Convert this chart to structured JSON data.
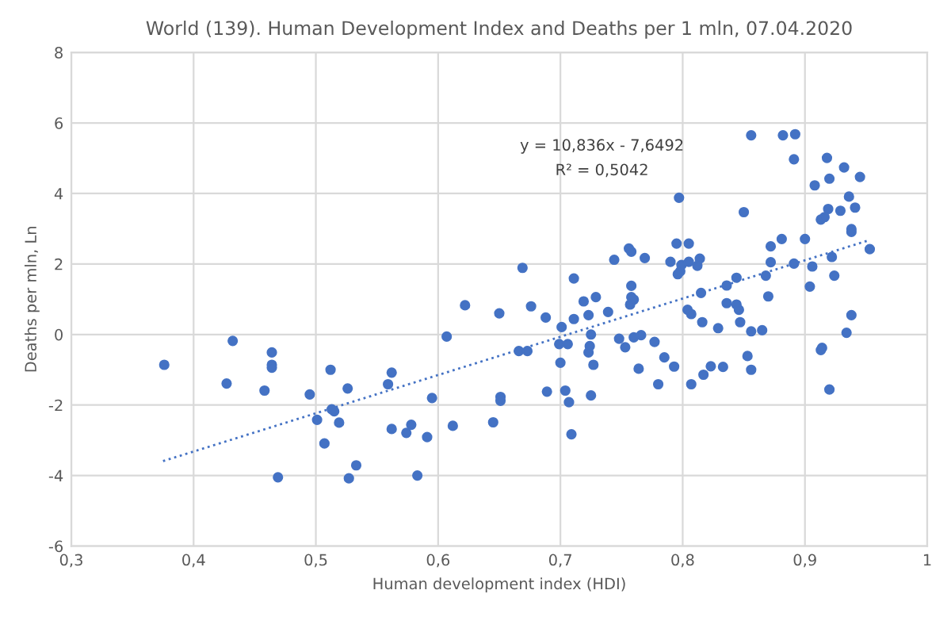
{
  "chart_data": {
    "type": "scatter",
    "title": "World (139). Human Development Index and Deaths per 1 mln, 07.04.2020",
    "xlabel": "Human development index (HDI)",
    "ylabel": "Deaths per mln, Ln",
    "annotations": [
      "y = 10,836x - 7,6492",
      "R² = 0,5042"
    ],
    "xlim": [
      0.3,
      1.0
    ],
    "xticks": [
      {
        "value": 0.3,
        "label": "0,3"
      },
      {
        "value": 0.4,
        "label": "0,4"
      },
      {
        "value": 0.5,
        "label": "0,5"
      },
      {
        "value": 0.6,
        "label": "0,6"
      },
      {
        "value": 0.7,
        "label": "0,7"
      },
      {
        "value": 0.8,
        "label": "0,8"
      },
      {
        "value": 0.9,
        "label": "0,9"
      },
      {
        "value": 1.0,
        "label": "1"
      }
    ],
    "ylim": [
      -6,
      8
    ],
    "yticks": [
      -6,
      -4,
      -2,
      0,
      2,
      4,
      6,
      8
    ],
    "grid": true,
    "marker": "circle",
    "series": [
      {
        "color": "#4472c4",
        "x": [
          0.376,
          0.432,
          0.427,
          0.464,
          0.464,
          0.464,
          0.458,
          0.469,
          0.495,
          0.512,
          0.526,
          0.513,
          0.515,
          0.501,
          0.519,
          0.507,
          0.533,
          0.527,
          0.562,
          0.559,
          0.562,
          0.574,
          0.578,
          0.591,
          0.583,
          0.595,
          0.607,
          0.612,
          0.622,
          0.645,
          0.65,
          0.651,
          0.651,
          0.666,
          0.673,
          0.669,
          0.676,
          0.688,
          0.689,
          0.699,
          0.7,
          0.701,
          0.704,
          0.706,
          0.707,
          0.709,
          0.711,
          0.711,
          0.719,
          0.723,
          0.725,
          0.724,
          0.723,
          0.727,
          0.725,
          0.729,
          0.739,
          0.744,
          0.748,
          0.753,
          0.758,
          0.758,
          0.76,
          0.757,
          0.76,
          0.766,
          0.764,
          0.769,
          0.777,
          0.78,
          0.785,
          0.79,
          0.793,
          0.796,
          0.798,
          0.799,
          0.805,
          0.812,
          0.814,
          0.815,
          0.804,
          0.807,
          0.816,
          0.807,
          0.817,
          0.823,
          0.756,
          0.758,
          0.795,
          0.797,
          0.805,
          0.856,
          0.882,
          0.892,
          0.891,
          0.918,
          0.932,
          0.945,
          0.908,
          0.92,
          0.936,
          0.941,
          0.919,
          0.929,
          0.913,
          0.916,
          0.85,
          0.938,
          0.938,
          0.881,
          0.9,
          0.872,
          0.953,
          0.922,
          0.872,
          0.891,
          0.906,
          0.924,
          0.868,
          0.844,
          0.836,
          0.904,
          0.87,
          0.836,
          0.844,
          0.846,
          0.829,
          0.847,
          0.856,
          0.865,
          0.938,
          0.934,
          0.914,
          0.853,
          0.856,
          0.833,
          0.913,
          0.92
        ],
        "values": [
          -0.86,
          -0.18,
          -1.39,
          -0.51,
          -0.86,
          -0.94,
          -1.59,
          -4.05,
          -1.7,
          -1.0,
          -1.53,
          -2.12,
          -2.18,
          -2.42,
          -2.5,
          -3.09,
          -3.71,
          -4.08,
          -1.08,
          -1.41,
          -2.68,
          -2.79,
          -2.56,
          -2.91,
          -4.0,
          -1.8,
          -0.06,
          -2.59,
          0.83,
          -2.49,
          0.6,
          -1.77,
          -1.88,
          -0.47,
          -0.47,
          1.89,
          0.8,
          0.48,
          -1.62,
          -0.27,
          -0.8,
          0.21,
          -1.59,
          -0.27,
          -1.92,
          -2.83,
          1.59,
          0.44,
          0.94,
          0.55,
          0.0,
          -0.33,
          -0.51,
          -0.86,
          -1.73,
          1.06,
          0.64,
          2.12,
          -0.12,
          -0.36,
          1.38,
          1.06,
          0.99,
          0.85,
          -0.08,
          -0.02,
          -0.97,
          2.17,
          -0.21,
          -1.41,
          -0.65,
          2.06,
          -0.91,
          1.71,
          1.79,
          1.97,
          2.06,
          1.95,
          2.15,
          1.18,
          0.7,
          0.58,
          0.35,
          -1.41,
          -1.14,
          -0.9,
          2.44,
          2.35,
          2.58,
          3.88,
          2.58,
          5.65,
          5.65,
          5.68,
          4.97,
          5.01,
          4.74,
          4.47,
          4.23,
          4.42,
          3.91,
          3.6,
          3.56,
          3.51,
          3.26,
          3.33,
          3.47,
          2.99,
          2.91,
          2.71,
          2.71,
          2.5,
          2.42,
          2.2,
          2.05,
          2.01,
          1.93,
          1.67,
          1.67,
          1.61,
          1.39,
          1.36,
          1.08,
          0.89,
          0.85,
          0.7,
          0.18,
          0.35,
          0.09,
          0.12,
          0.55,
          0.05,
          -0.38,
          -0.61,
          -1.0,
          -0.92,
          -0.44,
          -1.56
        ]
      },
      {
        "type": "line",
        "color": "#4472c4",
        "line_style": "dotted",
        "marker": "none",
        "x": [
          0.375,
          0.953
        ],
        "values": [
          -3.59,
          2.68
        ]
      }
    ]
  }
}
